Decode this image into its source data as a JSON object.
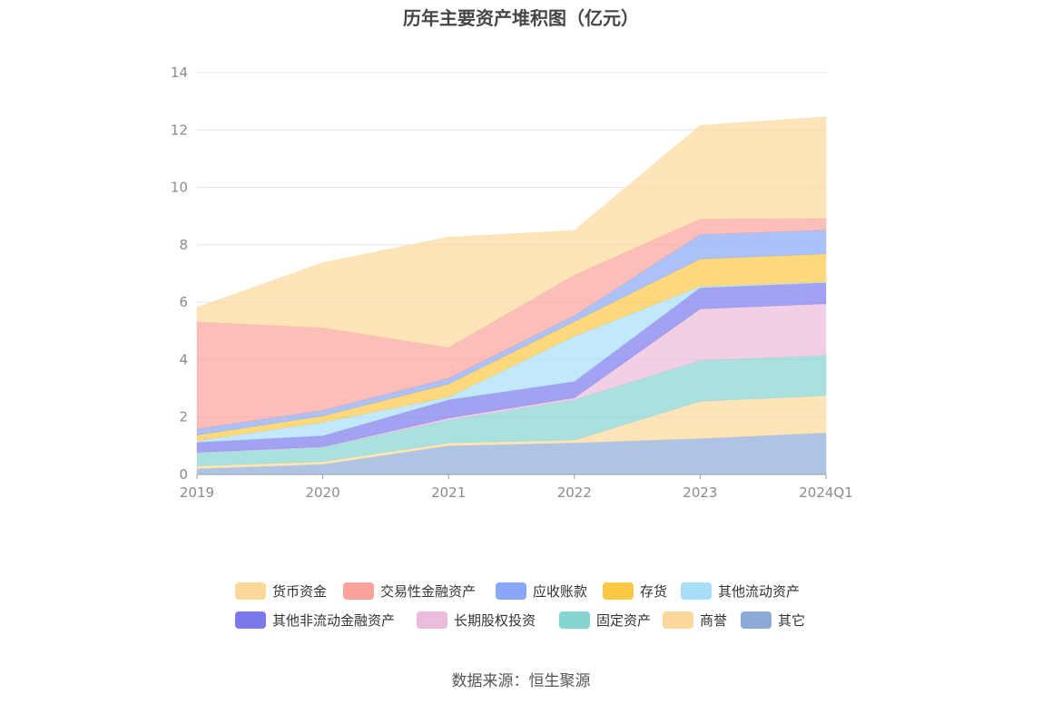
{
  "chart_data": {
    "type": "area",
    "stacked": true,
    "title": "历年主要资产堆积图（亿元）",
    "xlabel": "",
    "ylabel": "",
    "categories": [
      "2019",
      "2020",
      "2021",
      "2022",
      "2023",
      "2024Q1"
    ],
    "ylim": [
      0,
      14
    ],
    "yticks": [
      0,
      2,
      4,
      6,
      8,
      10,
      12,
      14
    ],
    "grid": true,
    "legend_position": "bottom",
    "series": [
      {
        "name": "货币资金",
        "color": "#fdd89b",
        "values": [
          0.5,
          2.27,
          3.85,
          1.55,
          3.26,
          3.54
        ]
      },
      {
        "name": "交易性金融资产",
        "color": "#f9a29a",
        "values": [
          3.73,
          2.88,
          1.07,
          1.42,
          0.54,
          0.41
        ]
      },
      {
        "name": "应收账款",
        "color": "#8aa6f7",
        "values": [
          0.22,
          0.19,
          0.2,
          0.2,
          0.85,
          0.82
        ]
      },
      {
        "name": "存货",
        "color": "#fdc844",
        "values": [
          0.2,
          0.22,
          0.45,
          0.51,
          0.96,
          0.98
        ]
      },
      {
        "name": "其他流动资产",
        "color": "#a8dff8",
        "values": [
          0.05,
          0.47,
          0.1,
          1.58,
          0.05,
          0.03
        ]
      },
      {
        "name": "其他非流动金融资产",
        "color": "#7b79ec",
        "values": [
          0.35,
          0.38,
          0.63,
          0.57,
          0.73,
          0.73
        ]
      },
      {
        "name": "长期股权投资",
        "color": "#ebbcdc",
        "values": [
          0.02,
          0.02,
          0.07,
          0.07,
          1.8,
          1.8
        ]
      },
      {
        "name": "固定资产",
        "color": "#84d4d2",
        "values": [
          0.45,
          0.5,
          0.8,
          1.4,
          1.42,
          1.4
        ]
      },
      {
        "name": "商誉",
        "color": "#fdd89b",
        "values": [
          0.1,
          0.1,
          0.1,
          0.1,
          1.3,
          1.3
        ]
      },
      {
        "name": "其它",
        "color": "#8cabd9",
        "values": [
          0.2,
          0.35,
          1.0,
          1.1,
          1.25,
          1.45
        ]
      }
    ]
  },
  "source": "数据来源：恒生聚源"
}
